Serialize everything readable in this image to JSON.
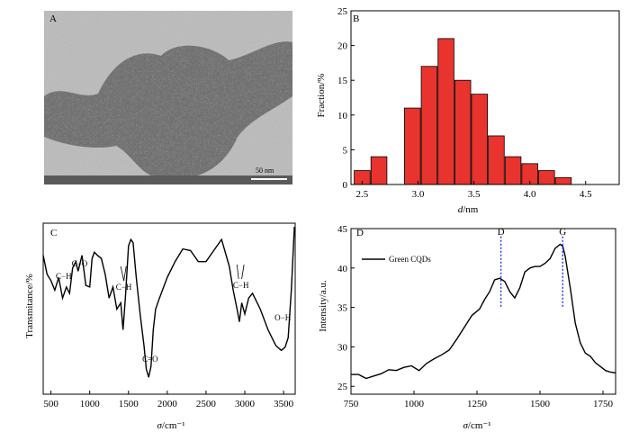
{
  "panel_a": {
    "letter": "A",
    "scale_bar_label": "50 nm"
  },
  "chart_data": [
    {
      "panel": "B",
      "type": "bar",
      "title": "",
      "xlabel": "d/nm",
      "xlabel_var": "d",
      "xlabel_unit": "/nm",
      "ylabel": "Fraction/%",
      "xlim": [
        2.4,
        4.8
      ],
      "ylim": [
        0,
        25
      ],
      "xticks": [
        "2.5",
        "3.0",
        "3.5",
        "4.0",
        "4.5"
      ],
      "yticks": [
        "0",
        "5",
        "10",
        "15",
        "20",
        "25"
      ],
      "x": [
        2.5,
        2.65,
        2.8,
        2.95,
        3.1,
        3.25,
        3.4,
        3.55,
        3.7,
        3.85,
        4.0,
        4.15,
        4.3,
        4.45,
        4.6
      ],
      "values": [
        2,
        4,
        0,
        11,
        17,
        21,
        15,
        13,
        7,
        4,
        3,
        2,
        1,
        0,
        0
      ],
      "bar_color": "#e8332e"
    },
    {
      "panel": "C",
      "type": "line",
      "title": "",
      "xlabel": "σ/cm⁻¹",
      "xlabel_var": "σ",
      "xlabel_unit": "/cm⁻¹",
      "ylabel": "Transmitance/%",
      "xlim": [
        400,
        3650
      ],
      "xticks": [
        "500",
        "1000",
        "1500",
        "2000",
        "2500",
        "3000",
        "3500"
      ],
      "series": [
        {
          "x": [
            400,
            450,
            500,
            550,
            600,
            650,
            700,
            740,
            780,
            820,
            850,
            900,
            950,
            1000,
            1030,
            1060,
            1100,
            1150,
            1200,
            1250,
            1300,
            1350,
            1400,
            1430,
            1460,
            1500,
            1530,
            1560,
            1600,
            1650,
            1700,
            1730,
            1760,
            1790,
            1820,
            1850,
            1900,
            2000,
            2100,
            2200,
            2300,
            2400,
            2500,
            2600,
            2700,
            2800,
            2850,
            2900,
            2930,
            2960,
            3000,
            3050,
            3100,
            3200,
            3300,
            3400,
            3470,
            3520,
            3560,
            3600,
            3640
          ],
          "y": [
            82,
            70,
            66,
            60,
            68,
            55,
            62,
            58,
            74,
            78,
            72,
            82,
            63,
            62,
            80,
            84,
            82,
            80,
            70,
            55,
            62,
            48,
            52,
            35,
            55,
            88,
            92,
            90,
            68,
            45,
            25,
            10,
            5,
            12,
            35,
            48,
            55,
            68,
            78,
            86,
            85,
            78,
            78,
            85,
            92,
            75,
            60,
            48,
            40,
            52,
            45,
            55,
            58,
            48,
            35,
            25,
            22,
            24,
            30,
            60,
            100
          ]
        }
      ],
      "annotations": [
        "C−H",
        "C−O",
        "C−H",
        "C=O",
        "C−H",
        "O−H"
      ]
    },
    {
      "panel": "D",
      "type": "line",
      "title": "",
      "xlabel": "σ/cm⁻¹",
      "xlabel_var": "σ",
      "xlabel_unit": "/cm⁻¹",
      "ylabel": "Intensity/a.u.",
      "xlim": [
        750,
        1800
      ],
      "ylim": [
        24,
        45
      ],
      "xticks": [
        "750",
        "1000",
        "1250",
        "1500",
        "1750"
      ],
      "yticks": [
        "25",
        "30",
        "35",
        "40",
        "45"
      ],
      "legend": "top-left",
      "series": [
        {
          "name": "Green CQDs",
          "x": [
            750,
            780,
            810,
            840,
            870,
            900,
            930,
            960,
            990,
            1020,
            1050,
            1080,
            1110,
            1140,
            1170,
            1200,
            1230,
            1260,
            1280,
            1300,
            1320,
            1340,
            1360,
            1380,
            1400,
            1420,
            1440,
            1460,
            1480,
            1500,
            1520,
            1540,
            1560,
            1580,
            1590,
            1600,
            1620,
            1640,
            1660,
            1680,
            1700,
            1720,
            1740,
            1760,
            1780,
            1800
          ],
          "values": [
            26.5,
            26.5,
            26.0,
            26.3,
            26.6,
            27.1,
            27.0,
            27.4,
            27.6,
            27.0,
            27.9,
            28.5,
            29.0,
            29.6,
            31.0,
            32.5,
            34.0,
            34.8,
            36.0,
            37.0,
            38.5,
            38.7,
            38.3,
            37.0,
            36.2,
            37.5,
            39.5,
            40.0,
            40.2,
            40.2,
            40.6,
            41.2,
            42.5,
            43.0,
            42.8,
            41.5,
            37.5,
            33.0,
            30.5,
            29.2,
            28.8,
            28.0,
            27.5,
            27.0,
            26.8,
            26.7
          ]
        }
      ],
      "annotations": [
        "D",
        "G"
      ],
      "peak_markers": [
        1345,
        1590
      ]
    }
  ],
  "panel_letters": {
    "b": "B",
    "c": "C",
    "d": "D"
  }
}
